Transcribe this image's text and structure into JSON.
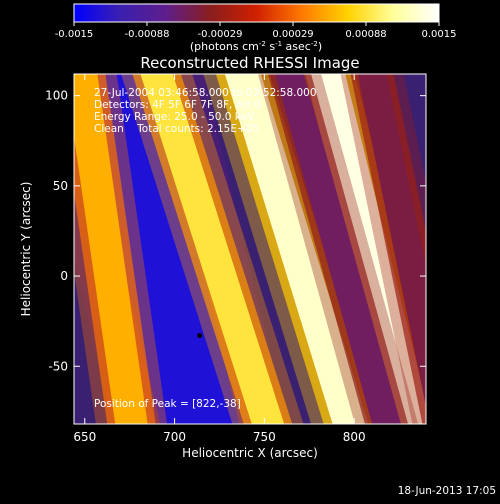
{
  "colorbar": {
    "ticks": [
      "-0.0015",
      "-0.00088",
      "-0.00029",
      "0.00029",
      "0.00088",
      "0.0015"
    ],
    "units_prefix": "(photons cm",
    "units_sup1": "-2",
    "units_mid1": " s",
    "units_sup2": "-1",
    "units_mid2": " asec",
    "units_sup3": "-2",
    "units_suffix": ")",
    "colors": [
      "#0000ff",
      "#3a1fb0",
      "#5e1e8c",
      "#8a1d1d",
      "#d02000",
      "#ff7a00",
      "#ffd200",
      "#ffff9a",
      "#ffffff"
    ]
  },
  "image": {
    "title": "Reconstructed RHESSI Image",
    "info_lines": [
      "27-Jul-2004 03:46:58.000 to 03:52:58.000",
      "Detectors: 4F 5F 6F 7F 8F, Att 0",
      "Energy Range: 25.0 - 50.0 keV",
      "Clean    Total counts: 2.15E+05"
    ],
    "peak_label": "Position of Peak = [822,-38]",
    "timestamp": "18-Jun-2013 17:05"
  },
  "chart_data": {
    "type": "heatmap",
    "title": "Reconstructed RHESSI Image",
    "xlabel": "Heliocentric X (arcsec)",
    "ylabel": "Heliocentric Y (arcsec)",
    "xlim": [
      644,
      840
    ],
    "ylim": [
      -82,
      112
    ],
    "x_ticks": [
      650,
      700,
      750,
      800
    ],
    "y_ticks": [
      -50,
      0,
      50,
      100
    ],
    "value_range": [
      -0.0015,
      0.0015
    ],
    "peak": {
      "x": 822,
      "y": -38
    },
    "marked_point": {
      "x": 714,
      "y": -33
    },
    "bands": [
      {
        "level": -0.0013,
        "x_at_ymin": 714,
        "x_at_ymax": 668,
        "width": 22
      },
      {
        "level": 0.0009,
        "x_at_ymin": 752,
        "x_at_ymax": 690,
        "width": 9
      },
      {
        "level": 0.0013,
        "x_at_ymin": 798,
        "x_at_ymax": 738,
        "width": 10
      },
      {
        "level": 0.0014,
        "x_at_ymin": 832,
        "x_at_ymax": 784,
        "width": 11
      },
      {
        "level": 0.0006,
        "x_at_ymin": 676,
        "x_at_ymax": 648,
        "width": 9
      },
      {
        "level": -0.0006,
        "x_at_ymin": 818,
        "x_at_ymax": 764,
        "width": 8
      },
      {
        "level": -0.0005,
        "x_at_ymin": 850,
        "x_at_ymax": 810,
        "width": 8
      }
    ]
  }
}
